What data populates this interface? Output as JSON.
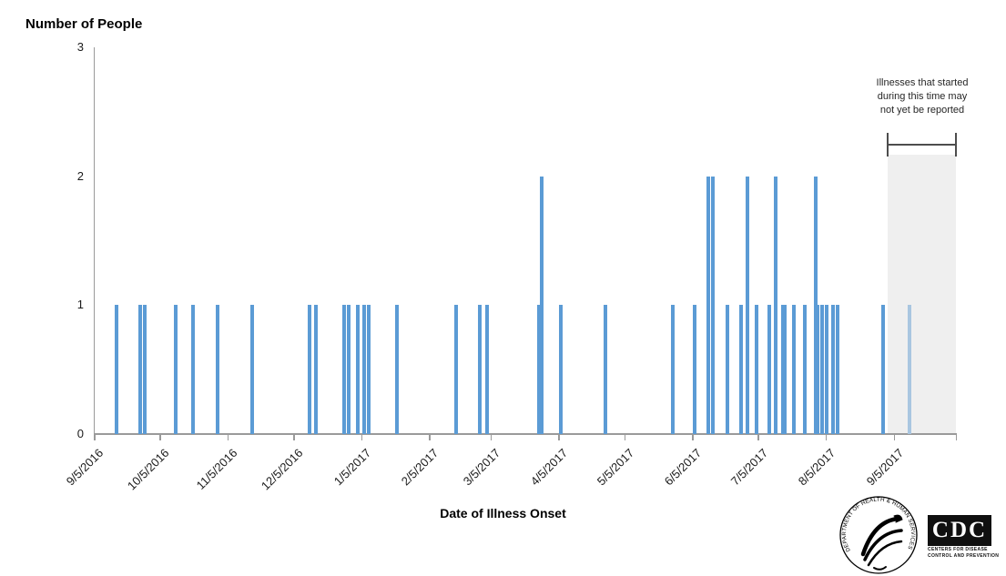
{
  "chart_data": {
    "type": "bar",
    "title": "Number of People",
    "xlabel": "Date of Illness Onset",
    "ylabel": "Number of People",
    "ylim": [
      0,
      3
    ],
    "yticks": [
      3,
      2,
      1,
      0
    ],
    "grid": false,
    "legend_position": "none",
    "x_axis_start": "9/5/2016",
    "x_tick_labels": [
      "9/5/2016",
      "10/5/2016",
      "11/5/2016",
      "12/5/2016",
      "1/5/2017",
      "2/5/2017",
      "3/5/2017",
      "4/5/2017",
      "5/5/2017",
      "6/5/2017",
      "7/5/2017",
      "8/5/2017",
      "9/5/2017"
    ],
    "bars": [
      {
        "date": "9/15/2016",
        "count": 1
      },
      {
        "date": "9/26/2016",
        "count": 1
      },
      {
        "date": "9/28/2016",
        "count": 1
      },
      {
        "date": "10/12/2016",
        "count": 1
      },
      {
        "date": "10/20/2016",
        "count": 1
      },
      {
        "date": "10/31/2016",
        "count": 1
      },
      {
        "date": "11/16/2016",
        "count": 1
      },
      {
        "date": "12/12/2016",
        "count": 1
      },
      {
        "date": "12/15/2016",
        "count": 1
      },
      {
        "date": "12/28/2016",
        "count": 1
      },
      {
        "date": "12/30/2016",
        "count": 1
      },
      {
        "date": "1/3/2017",
        "count": 1
      },
      {
        "date": "1/6/2017",
        "count": 1
      },
      {
        "date": "1/8/2017",
        "count": 1
      },
      {
        "date": "1/21/2017",
        "count": 1
      },
      {
        "date": "2/17/2017",
        "count": 1
      },
      {
        "date": "2/28/2017",
        "count": 1
      },
      {
        "date": "3/3/2017",
        "count": 1
      },
      {
        "date": "3/27/2017",
        "count": 1
      },
      {
        "date": "3/28/2017",
        "count": 2
      },
      {
        "date": "4/6/2017",
        "count": 1
      },
      {
        "date": "4/26/2017",
        "count": 1
      },
      {
        "date": "5/27/2017",
        "count": 1
      },
      {
        "date": "6/6/2017",
        "count": 1
      },
      {
        "date": "6/12/2017",
        "count": 2
      },
      {
        "date": "6/14/2017",
        "count": 2
      },
      {
        "date": "6/21/2017",
        "count": 1
      },
      {
        "date": "6/27/2017",
        "count": 1
      },
      {
        "date": "6/30/2017",
        "count": 2
      },
      {
        "date": "7/4/2017",
        "count": 1
      },
      {
        "date": "7/10/2017",
        "count": 1
      },
      {
        "date": "7/13/2017",
        "count": 2
      },
      {
        "date": "7/16/2017",
        "count": 1
      },
      {
        "date": "7/17/2017",
        "count": 1
      },
      {
        "date": "7/21/2017",
        "count": 1
      },
      {
        "date": "7/26/2017",
        "count": 1
      },
      {
        "date": "7/31/2017",
        "count": 2
      },
      {
        "date": "8/1/2017",
        "count": 1
      },
      {
        "date": "8/3/2017",
        "count": 1
      },
      {
        "date": "8/5/2017",
        "count": 1
      },
      {
        "date": "8/8/2017",
        "count": 1
      },
      {
        "date": "8/10/2017",
        "count": 1
      },
      {
        "date": "8/31/2017",
        "count": 1
      },
      {
        "date": "9/12/2017",
        "count": 1,
        "faded": true
      }
    ],
    "annotation": {
      "lines": [
        "Illnesses that started",
        "during this time may",
        "not yet be reported"
      ],
      "shaded_start": "9/2/2017",
      "shaded_end": "10/3/2017"
    }
  },
  "colors": {
    "bar": "#5b9bd5",
    "bar_faded": "#a9c6e0",
    "shade": "#efefef",
    "axis": "#9a9a9a",
    "bracket": "#4d4d4d",
    "text": "#1a1a1a"
  },
  "logos": {
    "hhs_seal_text": "DEPARTMENT OF HEALTH & HUMAN SERVICES • USA",
    "cdc_acronym": "CDC",
    "cdc_name_line1": "CENTERS FOR DISEASE",
    "cdc_name_line2": "CONTROL AND PREVENTION"
  }
}
